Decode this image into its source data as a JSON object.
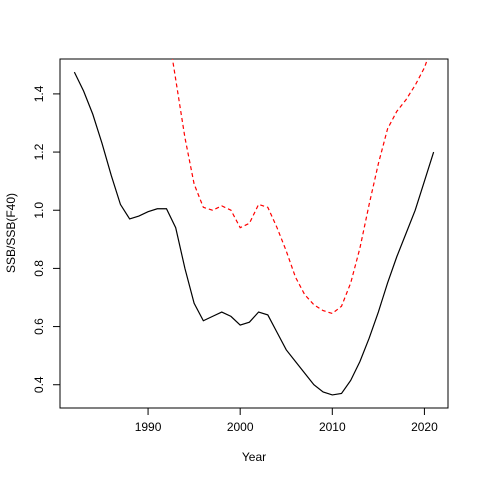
{
  "chart_data": {
    "type": "line",
    "xlabel": "Year",
    "ylabel": "SSB/SSB(F40)",
    "x": [
      1982,
      1983,
      1984,
      1985,
      1986,
      1987,
      1988,
      1989,
      1990,
      1991,
      1992,
      1993,
      1994,
      1995,
      1996,
      1997,
      1998,
      1999,
      2000,
      2001,
      2002,
      2003,
      2004,
      2005,
      2006,
      2007,
      2008,
      2009,
      2010,
      2011,
      2012,
      2013,
      2014,
      2015,
      2016,
      2017,
      2018,
      2019,
      2020,
      2021
    ],
    "series": [
      {
        "color": "#000000",
        "dash": false,
        "values": [
          1.475,
          1.41,
          1.33,
          1.23,
          1.12,
          1.02,
          0.97,
          0.98,
          0.995,
          1.005,
          1.005,
          0.94,
          0.8,
          0.68,
          0.62,
          0.635,
          0.65,
          0.635,
          0.605,
          0.615,
          0.65,
          0.64,
          0.58,
          0.52,
          0.48,
          0.44,
          0.4,
          0.375,
          0.365,
          0.37,
          0.415,
          0.48,
          0.56,
          0.65,
          0.75,
          0.84,
          0.92,
          1.0,
          1.1,
          1.2
        ]
      },
      {
        "color": "#ff0000",
        "dash": true,
        "values": [
          null,
          null,
          null,
          null,
          null,
          null,
          null,
          null,
          null,
          null,
          1.65,
          1.45,
          1.25,
          1.09,
          1.01,
          1.0,
          1.015,
          1.0,
          0.94,
          0.955,
          1.02,
          1.01,
          0.94,
          0.86,
          0.77,
          0.71,
          0.675,
          0.655,
          0.645,
          0.67,
          0.75,
          0.87,
          1.02,
          1.16,
          1.28,
          1.34,
          1.38,
          1.43,
          1.49,
          1.58
        ]
      }
    ],
    "xlim": [
      1980.44,
      2022.56
    ],
    "xticks": [
      1990,
      2000,
      2010,
      2020
    ],
    "ylim": [
      0.32,
      1.52
    ],
    "yticks": [
      0.4,
      0.6,
      0.8,
      {
        "value": 1.0,
        "label": "1.0"
      },
      1.2,
      1.4
    ]
  }
}
